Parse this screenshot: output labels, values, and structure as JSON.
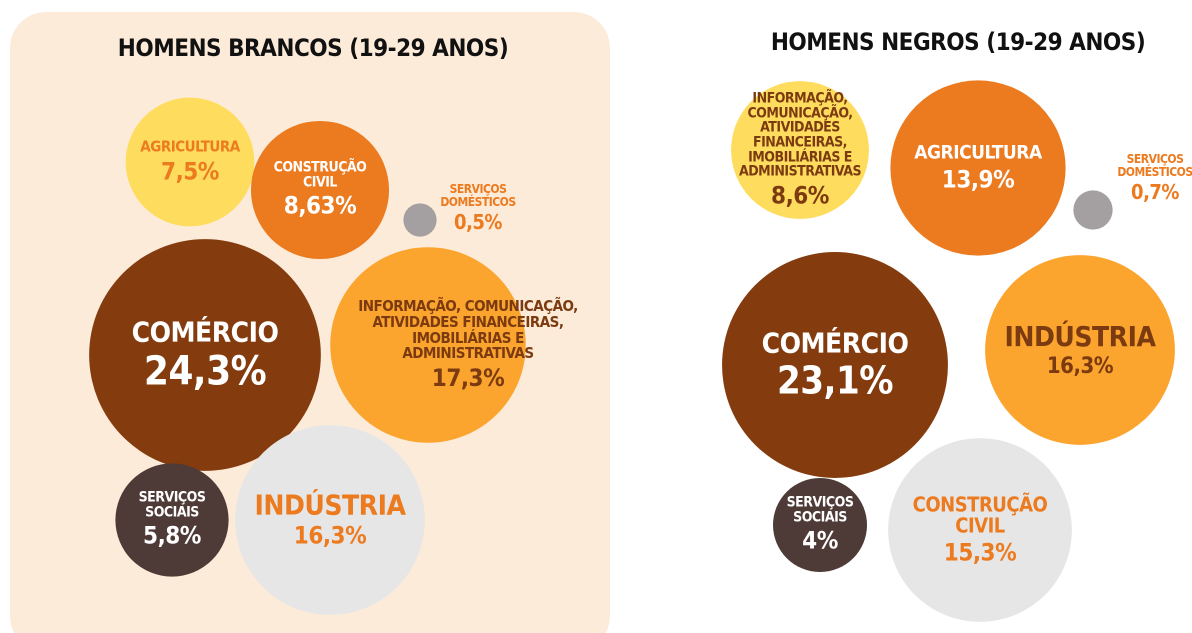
{
  "chart_data": [
    {
      "type": "bubble",
      "title": "HOMENS BRANCOS (19-29 ANOS)",
      "categories": [
        "AGRICULTURA",
        "CONSTRUÇÃO CIVIL",
        "SERVIÇOS DOMÉSTICOS",
        "COMÉRCIO",
        "INFORMAÇÃO, COMUNICAÇÃO, ATIVIDADES FINANCEIRAS, IMOBILIÁRIAS E ADMINISTRATIVAS",
        "SERVIÇOS SOCIAIS",
        "INDÚSTRIA"
      ],
      "values": [
        7.5,
        8.63,
        0.5,
        24.3,
        17.3,
        5.8,
        16.3
      ],
      "value_labels": [
        "7,5%",
        "8,63%",
        "0,5%",
        "24,3%",
        "17,3%",
        "5,8%",
        "16,3%"
      ],
      "colors": [
        "#fedc5d",
        "#ec7a1f",
        "#a4a0a2",
        "#843c0e",
        "#fba42e",
        "#4e3a36",
        "#e6e6e6"
      ],
      "text_colors": [
        "#ec7a1f",
        "#ffffff",
        "#ec7a1f",
        "#ffffff",
        "#7b3a10",
        "#ffffff",
        "#ec7a1f"
      ]
    },
    {
      "type": "bubble",
      "title": "HOMENS NEGROS (19-29 ANOS)",
      "categories": [
        "INFORMAÇÃO, COMUNICAÇÃO, ATIVIDADES FINANCEIRAS, IMOBILIÁRIAS E ADMINISTRATIVAS",
        "AGRICULTURA",
        "SERVIÇOS DOMÉSTICOS",
        "COMÉRCIO",
        "INDÚSTRIA",
        "SERVIÇOS SOCIAIS",
        "CONSTRUÇÃO CIVIL"
      ],
      "values": [
        8.6,
        13.9,
        0.7,
        23.1,
        16.3,
        4,
        15.3
      ],
      "value_labels": [
        "8,6%",
        "13,9%",
        "0,7%",
        "23,1%",
        "16,3%",
        "4%",
        "15,3%"
      ],
      "colors": [
        "#fedc5d",
        "#ec7a1f",
        "#a4a0a2",
        "#843c0e",
        "#fba42e",
        "#4e3a36",
        "#e6e6e6"
      ],
      "text_colors": [
        "#7b3a10",
        "#ffffff",
        "#ec7a1f",
        "#ffffff",
        "#7b3a10",
        "#ffffff",
        "#ec7a1f"
      ]
    }
  ]
}
